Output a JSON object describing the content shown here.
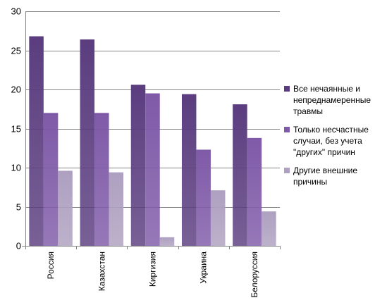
{
  "chart_data": {
    "type": "bar",
    "categories": [
      "Россия",
      "Казахстан",
      "Киргизия",
      "Украина",
      "Белоруссия"
    ],
    "series": [
      {
        "name": "Все нечаянные и непреднамеренные травмы",
        "values": [
          26.8,
          26.4,
          20.6,
          19.4,
          18.1
        ],
        "color": "#5b3d7f"
      },
      {
        "name": "Только несчастные случаи, без учета \"других\" причин",
        "values": [
          17.0,
          17.0,
          19.5,
          12.3,
          13.8
        ],
        "color": "#7f5aa8"
      },
      {
        "name": "Другие внешние причины",
        "values": [
          9.6,
          9.4,
          1.1,
          7.1,
          4.4
        ],
        "color": "#aea0c0"
      }
    ],
    "y_ticks": [
      0,
      5,
      10,
      15,
      20,
      25,
      30
    ],
    "ylim": [
      0,
      30
    ],
    "grid": true,
    "legend_position": "right"
  },
  "legend": {
    "items": [
      {
        "label": "Все нечаянные и\nнепреднамеренные\nтравмы",
        "color": "#5b3d7f"
      },
      {
        "label": "Только несчастные\nслучаи, без учета\n\"других\" причин",
        "color": "#7f5aa8"
      },
      {
        "label": "Другие внешние\nпричины",
        "color": "#aea0c0"
      }
    ]
  }
}
